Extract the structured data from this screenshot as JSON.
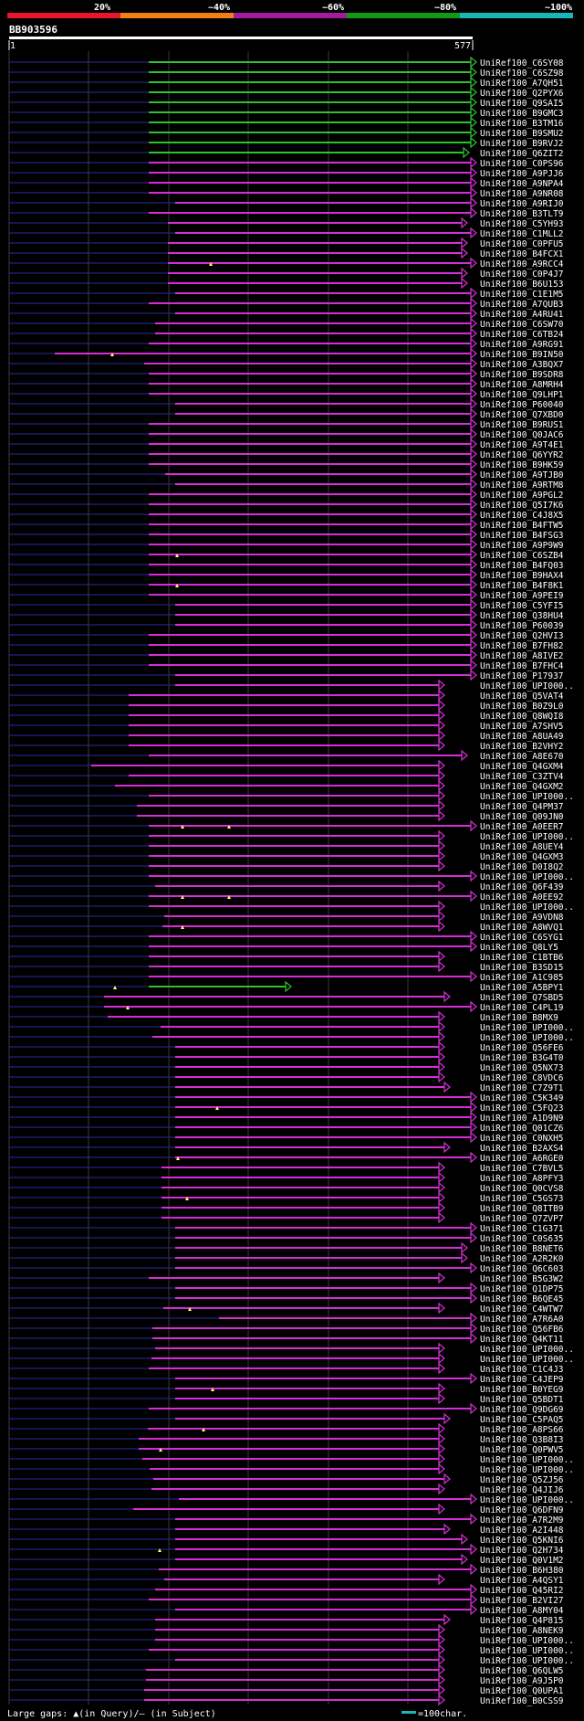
{
  "legend": {
    "labels": [
      "20%",
      "~40%",
      "~60%",
      "~80%",
      "~100%"
    ],
    "colors": [
      "#e8162c",
      "#f07f16",
      "#a01d9e",
      "#129a12",
      "#16b7b6"
    ]
  },
  "query": {
    "name": "BB903596",
    "start": "1",
    "end": "577"
  },
  "colors": {
    "green": "#2ec22e",
    "magenta": "#d62ed6",
    "gap": "#2a2aa0",
    "grid": "#3a3a3a"
  },
  "hits": [
    "UniRef100_C6SY08",
    "UniRef100_C6SZ98",
    "UniRef100_A7QH51",
    "UniRef100_Q2PYX6",
    "UniRef100_Q9SAI5",
    "UniRef100_B9GMC3",
    "UniRef100_B3TM16",
    "UniRef100_B9SMU2",
    "UniRef100_B9RVJ2",
    "UniRef100_Q6ZIT2",
    "UniRef100_C0PS96",
    "UniRef100_A9PJJ6",
    "UniRef100_A9NPA4",
    "UniRef100_A9NR08",
    "UniRef100_A9RIJ0",
    "UniRef100_B3TLT9",
    "UniRef100_C5YH93",
    "UniRef100_C1MLL2",
    "UniRef100_C0PFU5",
    "UniRef100_B4FCX1",
    "UniRef100_A9RCC4",
    "UniRef100_C0P4J7",
    "UniRef100_B6U153",
    "UniRef100_C1E1M5",
    "UniRef100_A7QUB3",
    "UniRef100_A4RU41",
    "UniRef100_C6SW70",
    "UniRef100_C6TB24",
    "UniRef100_A9RG91",
    "UniRef100_B9IN50",
    "UniRef100_A3BQX7",
    "UniRef100_B9SDR8",
    "UniRef100_A8MRH4",
    "UniRef100_Q9LHP1",
    "UniRef100_P60040",
    "UniRef100_Q7XBD0",
    "UniRef100_B9RUS1",
    "UniRef100_Q0JAC6",
    "UniRef100_A9T4E1",
    "UniRef100_Q6YYR2",
    "UniRef100_B9HK59",
    "UniRef100_A9TJB0",
    "UniRef100_A9RTM8",
    "UniRef100_A9PGL2",
    "UniRef100_Q5I7K6",
    "UniRef100_C4J8X5",
    "UniRef100_B4FTW5",
    "UniRef100_B4FSG3",
    "UniRef100_A9P9W9",
    "UniRef100_C6SZB4",
    "UniRef100_B4FQ03",
    "UniRef100_B9HAX4",
    "UniRef100_B4F8K1",
    "UniRef100_A9PEI9",
    "UniRef100_C5YFI5",
    "UniRef100_Q38HU4",
    "UniRef100_P60039",
    "UniRef100_Q2HVI3",
    "UniRef100_B7FH82",
    "UniRef100_A8IVE2",
    "UniRef100_B7FHC4",
    "UniRef100_P17937",
    "UniRef100_UPI000..",
    "UniRef100_Q5VAT4",
    "UniRef100_B0Z9L0",
    "UniRef100_Q8WQI8",
    "UniRef100_A7SHV5",
    "UniRef100_A8UA49",
    "UniRef100_B2VHY2",
    "UniRef100_A8E670",
    "UniRef100_Q4GXM4",
    "UniRef100_C3ZTV4",
    "UniRef100_Q4GXM2",
    "UniRef100_UPI000..",
    "UniRef100_Q4PM37",
    "UniRef100_Q09JN0",
    "UniRef100_A0EER7",
    "UniRef100_UPI000..",
    "UniRef100_A8UEY4",
    "UniRef100_Q4GXM3",
    "UniRef100_D0I8Q2",
    "UniRef100_UPI000..",
    "UniRef100_Q6F439",
    "UniRef100_A0EE92",
    "UniRef100_UPI000..",
    "UniRef100_A9VDN8",
    "UniRef100_A8WVQ1",
    "UniRef100_C6SYG1",
    "UniRef100_Q8LY5",
    "UniRef100_C1BTB6",
    "UniRef100_B3SD15",
    "UniRef100_A1C985",
    "UniRef100_A5BPY1",
    "UniRef100_Q7SBD5",
    "UniRef100_C4PL19",
    "UniRef100_B8MX9",
    "UniRef100_UPI000..",
    "UniRef100_UPI000..",
    "UniRef100_Q56FE6",
    "UniRef100_B3G4T0",
    "UniRef100_Q5NX73",
    "UniRef100_C8VDC6",
    "UniRef100_C7Z9T1",
    "UniRef100_C5K349",
    "UniRef100_C5FQ23",
    "UniRef100_A1D9N9",
    "UniRef100_Q01CZ6",
    "UniRef100_C0NXH5",
    "UniRef100_B2AXS4",
    "UniRef100_A6RGE0",
    "UniRef100_C7BVL5",
    "UniRef100_A8PFY3",
    "UniRef100_Q0CVS8",
    "UniRef100_C5GS73",
    "UniRef100_Q8ITB9",
    "UniRef100_Q7ZVP7",
    "UniRef100_C1G371",
    "UniRef100_C0S635",
    "UniRef100_B8NET6",
    "UniRef100_A2R2K0",
    "UniRef100_Q6C603",
    "UniRef100_B5G3W2",
    "UniRef100_Q1DP75",
    "UniRef100_B6QE45",
    "UniRef100_C4WTW7",
    "UniRef100_A7R6A0",
    "UniRef100_Q56FB6",
    "UniRef100_Q4KT11",
    "UniRef100_UPI000..",
    "UniRef100_UPI000..",
    "UniRef100_C1C4J3",
    "UniRef100_C4JEP9",
    "UniRef100_B0YEG9",
    "UniRef100_Q5BDT1",
    "UniRef100_Q9DG69",
    "UniRef100_C5PAQ5",
    "UniRef100_A8PS66",
    "UniRef100_Q3B8I3",
    "UniRef100_Q0PWV5",
    "UniRef100_UPI000..",
    "UniRef100_UPI000..",
    "UniRef100_Q5ZJ56",
    "UniRef100_Q4JIJ6",
    "UniRef100_UPI000..",
    "UniRef100_Q6DFN9",
    "UniRef100_A7R2M9",
    "UniRef100_A2I448",
    "UniRef100_Q5KNI6",
    "UniRef100_Q2H734",
    "UniRef100_Q0V1M2",
    "UniRef100_B6H380",
    "UniRef100_A4QSY1",
    "UniRef100_Q45RI2",
    "UniRef100_B2VI27",
    "UniRef100_A8MY04",
    "UniRef100_Q4P815",
    "UniRef100_A8NEK9",
    "UniRef100_UPI000..",
    "UniRef100_UPI000..",
    "UniRef100_UPI000..",
    "UniRef100_Q6QLW5",
    "UniRef100_A9J5P0",
    "UniRef100_Q0UPA1",
    "UniRef100_B0CSS9"
  ],
  "footer": {
    "gaps_text": "Large gaps: ▲(in Query)/— (in Subject)",
    "scale_text": "=100char."
  }
}
